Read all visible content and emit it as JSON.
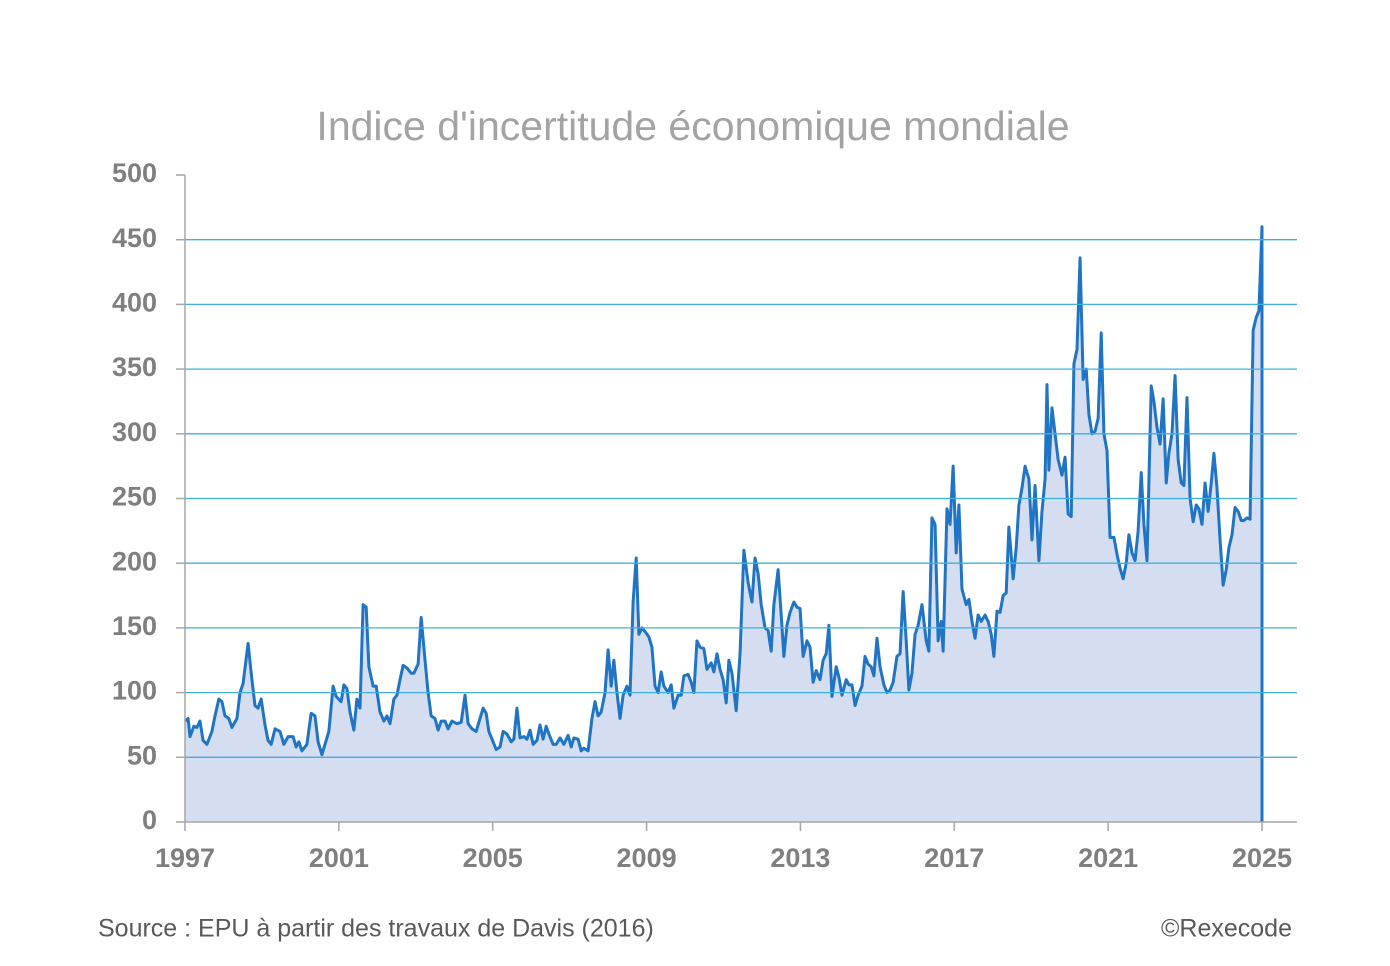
{
  "chart_data": {
    "type": "area",
    "title": "Indice d'incertitude économique mondiale",
    "source": "Source : EPU à partir des travaux de Davis (2016)",
    "credit": "©Rexecode",
    "color": "#1f74c4",
    "fill_color": "#d5ddf1",
    "grid_color": "#3fb0e0",
    "grid": true,
    "xlim": [
      1997,
      2025.91
    ],
    "xticks": [
      1997,
      2001,
      2005,
      2009,
      2013,
      2017,
      2021,
      2025
    ],
    "ylim": [
      0,
      500
    ],
    "yticks": [
      0,
      50,
      100,
      150,
      200,
      250,
      300,
      350,
      400,
      450,
      500
    ],
    "x": [
      1997.0,
      1997.08,
      1997.13,
      1997.23,
      1997.31,
      1997.39,
      1997.47,
      1997.57,
      1997.7,
      1997.78,
      1997.88,
      1997.96,
      1998.04,
      1998.14,
      1998.22,
      1998.35,
      1998.43,
      1998.51,
      1998.64,
      1998.74,
      1998.82,
      1998.9,
      1998.98,
      1999.08,
      1999.16,
      1999.24,
      1999.34,
      1999.47,
      1999.57,
      1999.68,
      1999.81,
      1999.89,
      1999.96,
      2000.04,
      2000.17,
      2000.28,
      2000.38,
      2000.46,
      2000.56,
      2000.67,
      2000.74,
      2000.85,
      2000.93,
      2001.06,
      2001.13,
      2001.21,
      2001.29,
      2001.39,
      2001.47,
      2001.55,
      2001.63,
      2001.71,
      2001.78,
      2001.89,
      2001.97,
      2002.07,
      2002.17,
      2002.25,
      2002.33,
      2002.43,
      2002.51,
      2002.59,
      2002.67,
      2002.77,
      2002.88,
      2002.95,
      2003.06,
      2003.14,
      2003.24,
      2003.32,
      2003.4,
      2003.5,
      2003.58,
      2003.66,
      2003.76,
      2003.84,
      2003.94,
      2004.07,
      2004.18,
      2004.28,
      2004.36,
      2004.46,
      2004.57,
      2004.67,
      2004.75,
      2004.83,
      2004.9,
      2005.01,
      2005.09,
      2005.19,
      2005.27,
      2005.37,
      2005.48,
      2005.55,
      2005.63,
      2005.71,
      2005.81,
      2005.89,
      2005.97,
      2006.05,
      2006.15,
      2006.23,
      2006.31,
      2006.39,
      2006.46,
      2006.57,
      2006.65,
      2006.75,
      2006.85,
      2006.96,
      2007.04,
      2007.11,
      2007.22,
      2007.3,
      2007.37,
      2007.48,
      2007.58,
      2007.66,
      2007.74,
      2007.82,
      2007.92,
      2008.0,
      2008.08,
      2008.15,
      2008.23,
      2008.31,
      2008.39,
      2008.49,
      2008.57,
      2008.65,
      2008.73,
      2008.8,
      2008.88,
      2008.99,
      2009.06,
      2009.14,
      2009.22,
      2009.3,
      2009.38,
      2009.45,
      2009.56,
      2009.64,
      2009.71,
      2009.82,
      2009.9,
      2009.97,
      2010.08,
      2010.16,
      2010.23,
      2010.31,
      2010.39,
      2010.49,
      2010.57,
      2010.68,
      2010.75,
      2010.83,
      2010.91,
      2010.99,
      2011.07,
      2011.14,
      2011.22,
      2011.33,
      2011.43,
      2011.53,
      2011.64,
      2011.74,
      2011.82,
      2011.9,
      2011.98,
      2012.08,
      2012.16,
      2012.24,
      2012.31,
      2012.42,
      2012.5,
      2012.57,
      2012.65,
      2012.73,
      2012.83,
      2012.91,
      2012.99,
      2013.07,
      2013.17,
      2013.25,
      2013.33,
      2013.41,
      2013.51,
      2013.59,
      2013.67,
      2013.74,
      2013.82,
      2013.93,
      2014.0,
      2014.08,
      2014.19,
      2014.26,
      2014.34,
      2014.42,
      2014.5,
      2014.6,
      2014.68,
      2014.76,
      2014.84,
      2014.91,
      2014.99,
      2015.07,
      2015.17,
      2015.25,
      2015.33,
      2015.41,
      2015.51,
      2015.59,
      2015.67,
      2015.75,
      2015.82,
      2015.9,
      2015.98,
      2016.06,
      2016.16,
      2016.27,
      2016.34,
      2016.42,
      2016.5,
      2016.58,
      2016.66,
      2016.71,
      2016.81,
      2016.89,
      2016.97,
      2017.05,
      2017.12,
      2017.2,
      2017.31,
      2017.38,
      2017.46,
      2017.54,
      2017.62,
      2017.7,
      2017.8,
      2017.88,
      2017.96,
      2018.03,
      2018.11,
      2018.19,
      2018.27,
      2018.35,
      2018.42,
      2018.53,
      2018.61,
      2018.68,
      2018.76,
      2018.84,
      2018.94,
      2019.02,
      2019.1,
      2019.2,
      2019.28,
      2019.36,
      2019.41,
      2019.46,
      2019.54,
      2019.62,
      2019.7,
      2019.8,
      2019.88,
      2019.96,
      2020.04,
      2020.11,
      2020.19,
      2020.27,
      2020.35,
      2020.43,
      2020.5,
      2020.58,
      2020.66,
      2020.74,
      2020.82,
      2020.89,
      2020.97,
      2021.05,
      2021.15,
      2021.23,
      2021.31,
      2021.39,
      2021.47,
      2021.54,
      2021.62,
      2021.7,
      2021.78,
      2021.86,
      2021.93,
      2022.01,
      2022.12,
      2022.19,
      2022.27,
      2022.35,
      2022.43,
      2022.51,
      2022.58,
      2022.66,
      2022.74,
      2022.82,
      2022.9,
      2022.97,
      2023.05,
      2023.13,
      2023.21,
      2023.29,
      2023.36,
      2023.44,
      2023.52,
      2023.6,
      2023.68,
      2023.75,
      2023.83,
      2023.91,
      2023.99,
      2024.07,
      2024.14,
      2024.22,
      2024.3,
      2024.38,
      2024.46,
      2024.53,
      2024.61,
      2024.69,
      2024.77,
      2024.85,
      2024.92,
      2025.0
    ],
    "values": [
      78,
      80,
      66,
      74,
      73,
      78,
      63,
      60,
      70,
      82,
      95,
      93,
      82,
      80,
      73,
      80,
      100,
      107,
      138,
      110,
      90,
      88,
      95,
      75,
      63,
      60,
      72,
      70,
      60,
      66,
      66,
      58,
      62,
      55,
      60,
      84,
      82,
      62,
      52,
      63,
      70,
      105,
      97,
      93,
      106,
      103,
      85,
      71,
      95,
      88,
      168,
      166,
      120,
      105,
      105,
      85,
      78,
      82,
      76,
      95,
      98,
      110,
      121,
      119,
      115,
      115,
      122,
      158,
      125,
      100,
      82,
      80,
      71,
      78,
      78,
      72,
      78,
      76,
      77,
      98,
      76,
      72,
      70,
      80,
      88,
      84,
      70,
      62,
      56,
      58,
      70,
      68,
      62,
      64,
      88,
      65,
      66,
      64,
      71,
      60,
      63,
      75,
      64,
      74,
      68,
      60,
      60,
      65,
      60,
      67,
      58,
      65,
      64,
      55,
      57,
      55,
      80,
      93,
      82,
      85,
      100,
      133,
      105,
      125,
      100,
      80,
      98,
      105,
      98,
      170,
      204,
      145,
      150,
      146,
      143,
      135,
      105,
      100,
      116,
      105,
      100,
      106,
      88,
      98,
      98,
      113,
      114,
      108,
      100,
      140,
      135,
      134,
      118,
      123,
      116,
      130,
      118,
      110,
      92,
      125,
      115,
      86,
      130,
      210,
      185,
      170,
      204,
      192,
      168,
      150,
      148,
      132,
      168,
      195,
      160,
      128,
      152,
      162,
      170,
      166,
      165,
      128,
      140,
      135,
      108,
      117,
      110,
      125,
      130,
      152,
      97,
      120,
      112,
      98,
      110,
      106,
      106,
      90,
      98,
      105,
      128,
      122,
      120,
      113,
      142,
      120,
      106,
      100,
      102,
      108,
      128,
      130,
      178,
      140,
      102,
      115,
      145,
      152,
      168,
      140,
      132,
      235,
      230,
      140,
      155,
      132,
      242,
      230,
      275,
      208,
      245,
      180,
      168,
      172,
      155,
      142,
      160,
      155,
      160,
      155,
      145,
      128,
      163,
      162,
      175,
      177,
      228,
      188,
      212,
      245,
      258,
      275,
      265,
      218,
      260,
      202,
      240,
      265,
      338,
      272,
      320,
      300,
      280,
      268,
      282,
      238,
      236,
      354,
      365,
      436,
      342,
      350,
      315,
      300,
      302,
      312,
      378,
      300,
      287,
      220,
      220,
      207,
      196,
      188,
      200,
      222,
      208,
      202,
      225,
      270,
      230,
      202,
      337,
      325,
      305,
      292,
      327,
      262,
      285,
      300,
      345,
      280,
      262,
      260,
      328,
      250,
      232,
      245,
      242,
      230,
      262,
      240,
      262,
      285,
      258,
      218,
      183,
      195,
      212,
      222,
      243,
      240,
      233,
      233,
      235,
      234,
      380,
      390,
      395,
      460
    ]
  }
}
